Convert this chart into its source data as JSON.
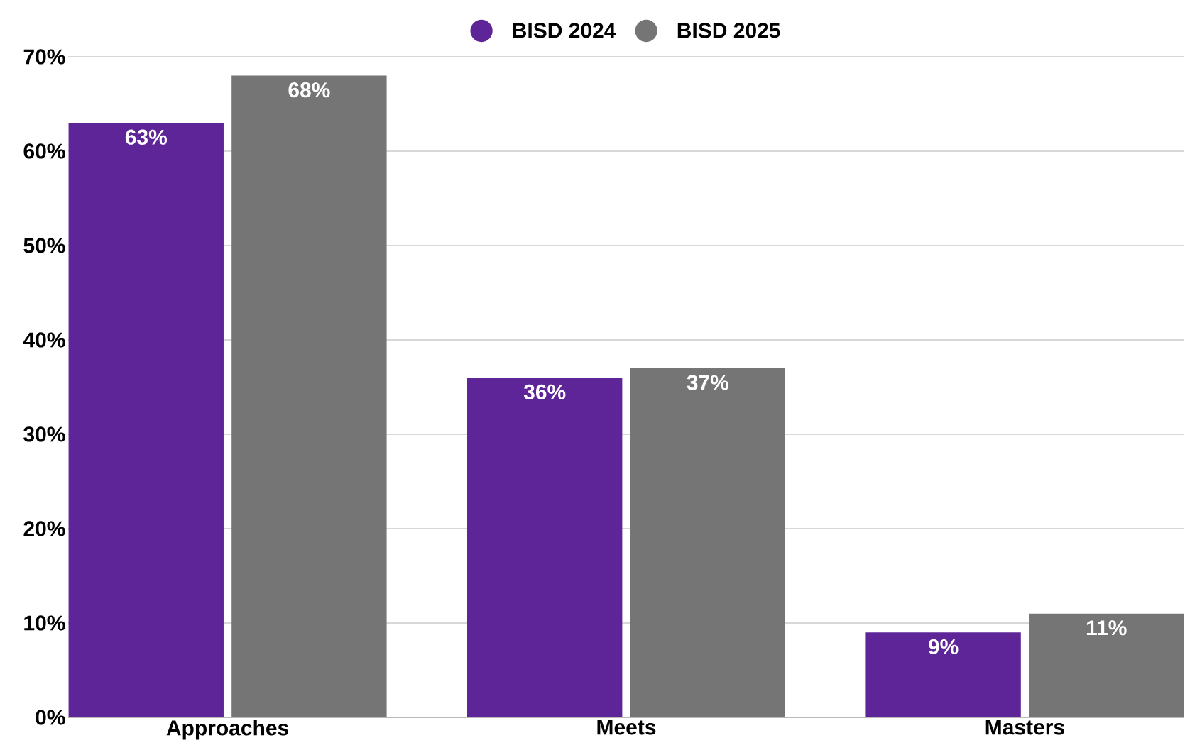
{
  "chart_data": {
    "type": "bar",
    "categories": [
      "Approaches",
      "Meets",
      "Masters"
    ],
    "series": [
      {
        "name": "BISD 2024",
        "color": "#5e2599",
        "values": [
          63,
          36,
          9
        ],
        "value_labels": [
          "63%",
          "36%",
          "9%"
        ]
      },
      {
        "name": "BISD 2025",
        "color": "#757575",
        "values": [
          68,
          37,
          11
        ],
        "value_labels": [
          "68%",
          "37%",
          "11%"
        ]
      }
    ],
    "ylim": [
      0,
      70
    ],
    "yticks": [
      {
        "value": 0,
        "label": "0%"
      },
      {
        "value": 10,
        "label": "10%"
      },
      {
        "value": 20,
        "label": "20%"
      },
      {
        "value": 30,
        "label": "30%"
      },
      {
        "value": 40,
        "label": "40%"
      },
      {
        "value": 50,
        "label": "50%"
      },
      {
        "value": 60,
        "label": "60%"
      },
      {
        "value": 70,
        "label": "70%"
      }
    ],
    "grid": "y",
    "legend": "top"
  }
}
